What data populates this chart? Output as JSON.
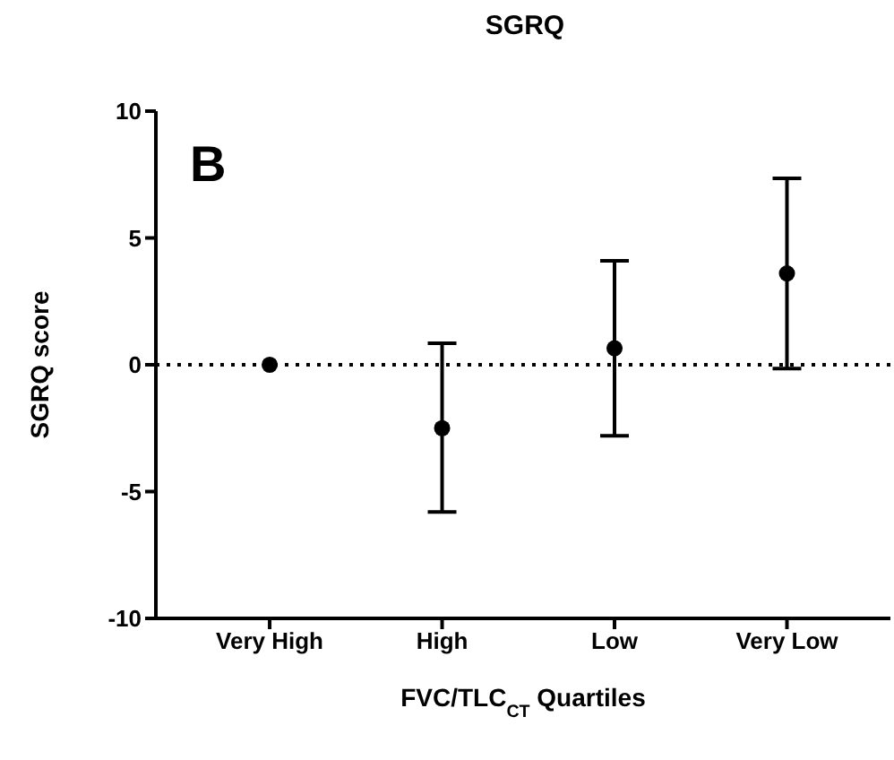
{
  "chart_data": {
    "type": "scatter",
    "title": "SGRQ",
    "xlabel": "FVC/TLC$_{CT}$ Quartiles",
    "ylabel": "SGRQ score",
    "annotations": [
      "B"
    ],
    "categories": [
      "Very High",
      "High",
      "Low",
      "Very Low"
    ],
    "series": [
      {
        "color": "#000000",
        "values": [
          0,
          -2.5,
          0.65,
          3.6
        ],
        "errors": [
          null,
          [
            -5.8,
            0.85
          ],
          [
            -2.8,
            4.1
          ],
          [
            -0.15,
            7.35
          ]
        ]
      }
    ],
    "ylim": [
      -10,
      10
    ],
    "yticks": [
      -10,
      -5,
      0,
      5,
      10
    ],
    "ref_lines": [
      {
        "axis": "y",
        "value": 0,
        "line_style": "dotted",
        "color": "#000000"
      }
    ],
    "grid": false,
    "legend": false,
    "marker": "circle"
  }
}
